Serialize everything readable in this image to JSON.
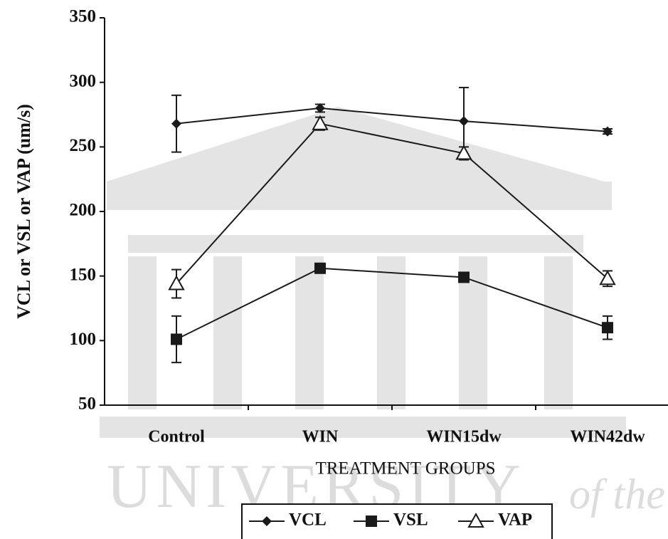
{
  "chart_data": {
    "type": "line",
    "y_label": "VCL or VSL or VAP (um/s)",
    "x_label": "TREATMENT GROUPS",
    "categories": [
      "Control",
      "WIN",
      "WIN15dw",
      "WIN42dw"
    ],
    "series": [
      {
        "name": "VCL",
        "color": "#1a1a1a",
        "marker": "diamond",
        "values": [
          268,
          280,
          270,
          262
        ],
        "errors": [
          22,
          3,
          26,
          2
        ]
      },
      {
        "name": "VSL",
        "color": "#1a1a1a",
        "marker": "square",
        "values": [
          101,
          156,
          149,
          110
        ],
        "errors": [
          18,
          2,
          2,
          9
        ]
      },
      {
        "name": "VAP",
        "color": "#1a1a1a",
        "marker": "triangle",
        "values": [
          144,
          268,
          245,
          148
        ],
        "errors": [
          11,
          5,
          5,
          6
        ]
      }
    ],
    "ylim": [
      50,
      350
    ],
    "yticks": [
      50,
      100,
      150,
      200,
      250,
      300,
      350
    ],
    "grid": false,
    "legend": "bottom",
    "watermark": [
      "UNIVERSITY",
      "of the"
    ]
  }
}
